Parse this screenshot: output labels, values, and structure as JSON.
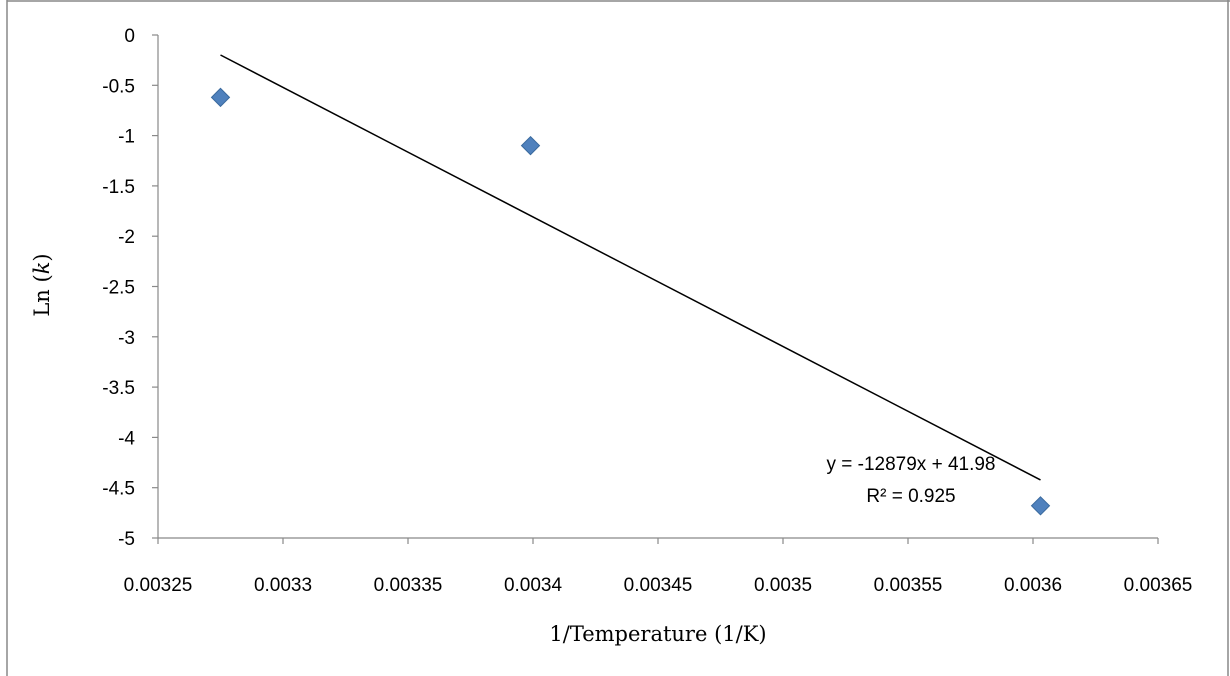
{
  "chart_data": {
    "type": "scatter",
    "xlabel": "1/Temperature (1/K)",
    "ylabel_prefix": "Ln (",
    "ylabel_var": "k",
    "ylabel_suffix": ")",
    "xlim": [
      0.00325,
      0.00365
    ],
    "ylim": [
      -5,
      0
    ],
    "x_ticks": [
      0.00325,
      0.0033,
      0.00335,
      0.0034,
      0.00345,
      0.0035,
      0.00355,
      0.0036,
      0.00365
    ],
    "x_tick_labels": [
      "0.00325",
      "0.0033",
      "0.00335",
      "0.0034",
      "0.00345",
      "0.0035",
      "0.00355",
      "0.0036",
      "0.00365"
    ],
    "y_ticks": [
      0,
      -0.5,
      -1,
      -1.5,
      -2,
      -2.5,
      -3,
      -3.5,
      -4,
      -4.5,
      -5
    ],
    "y_tick_labels": [
      "0",
      "-0.5",
      "-1",
      "-1.5",
      "-2",
      "-2.5",
      "-3",
      "-3.5",
      "-4",
      "-4.5",
      "-5"
    ],
    "grid": false,
    "series": [
      {
        "marker": "diamond",
        "color": "#4F81BD",
        "points": [
          {
            "x": 0.003275,
            "y": -0.62
          },
          {
            "x": 0.003399,
            "y": -1.1
          },
          {
            "x": 0.003603,
            "y": -4.68
          }
        ]
      }
    ],
    "trendline": {
      "slope": -12879,
      "intercept": 41.98,
      "x_start": 0.003275,
      "x_end": 0.003603,
      "color": "#000000",
      "equation_text": "y = -12879x + 41.98",
      "r2_text": "R² = 0.925"
    },
    "frame_color": "#898989"
  }
}
